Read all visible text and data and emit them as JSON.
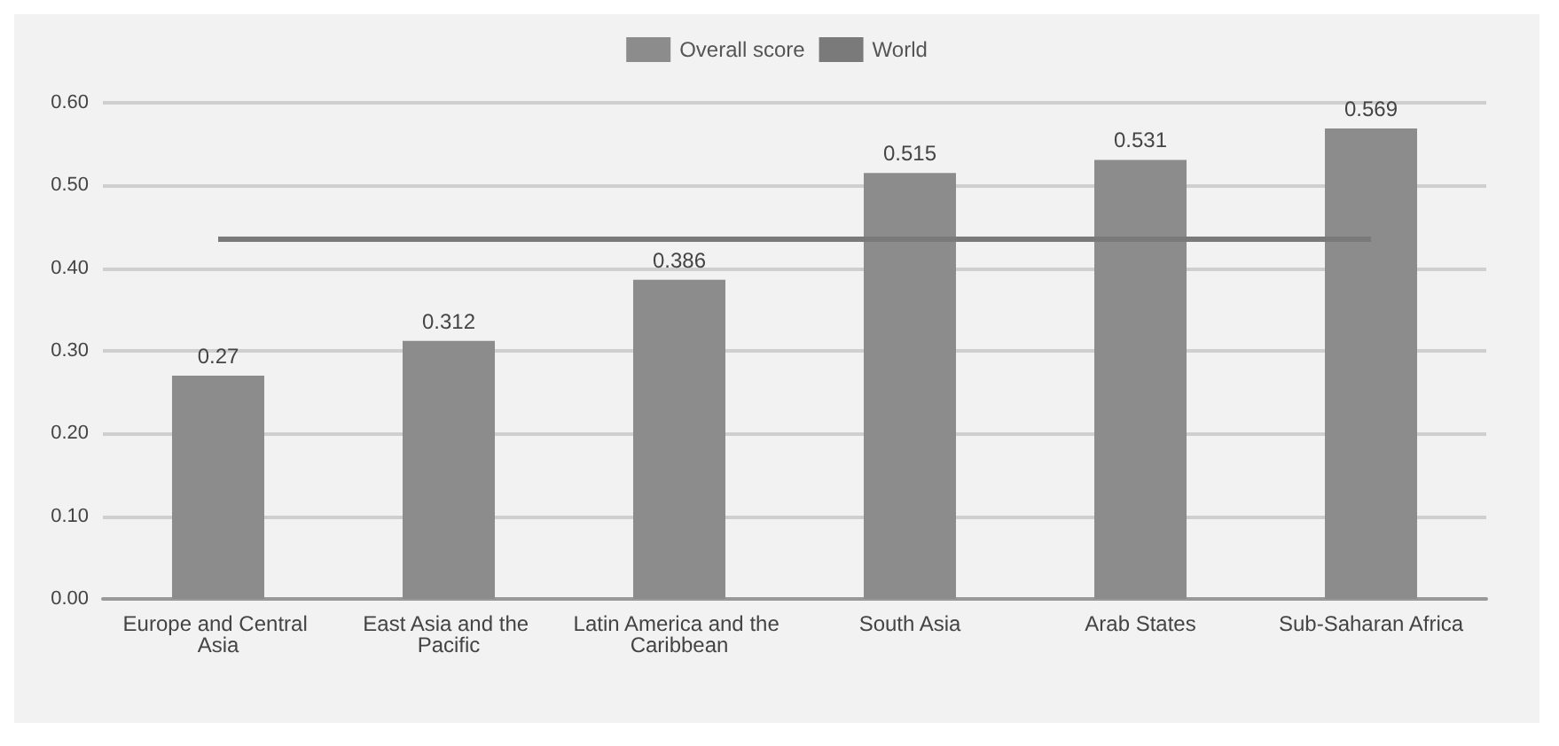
{
  "chart_data": {
    "type": "bar",
    "categories": [
      "Europe and Central Asia",
      "East Asia and the Pacific",
      "Latin America and the Caribbean",
      "South Asia",
      "Arab States",
      "Sub-Saharan Africa"
    ],
    "series": [
      {
        "name": "Overall score",
        "color": "#8c8c8c",
        "values": [
          0.27,
          0.312,
          0.386,
          0.515,
          0.531,
          0.569
        ],
        "value_labels": [
          "0.27",
          "0.312",
          "0.386",
          "0.515",
          "0.531",
          "0.569"
        ]
      },
      {
        "name": "World",
        "type": "line",
        "color": "#7a7a7a",
        "values": [
          0.435,
          0.435,
          0.435,
          0.435,
          0.435,
          0.435
        ]
      }
    ],
    "ylim": [
      0,
      0.6
    ],
    "yticks": [
      {
        "value": 0,
        "label": "0.00"
      },
      {
        "value": 0.1,
        "label": "0.10"
      },
      {
        "value": 0.2,
        "label": "0.20"
      },
      {
        "value": 0.3,
        "label": "0.30"
      },
      {
        "value": 0.4,
        "label": "0.40"
      },
      {
        "value": 0.5,
        "label": "0.50"
      },
      {
        "value": 0.6,
        "label": "0.60"
      }
    ],
    "grid": "y",
    "legend": "top",
    "marker": "none"
  }
}
